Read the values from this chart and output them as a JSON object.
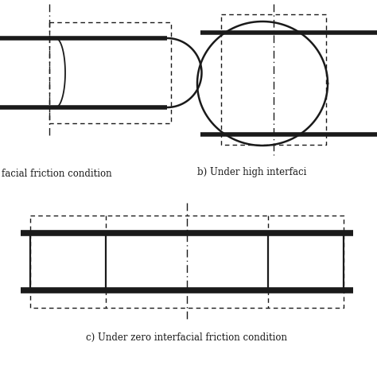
{
  "bg_color": "#ffffff",
  "line_color": "#1a1a1a",
  "thick_lw": 4.0,
  "thin_lw": 1.3,
  "dash_lw": 1.0,
  "label_a": "facial friction condition",
  "label_b": "b) Under high interfaci",
  "label_c": "c) Under zero interfacial friction condition",
  "figsize": [
    4.74,
    4.74
  ],
  "dpi": 100
}
